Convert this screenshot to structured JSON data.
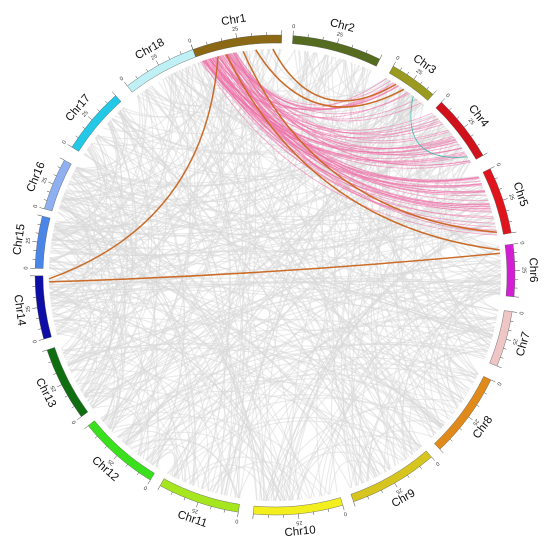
{
  "chromosomes": [
    {
      "name": "Chr1",
      "color": "#8B6914",
      "len": 50
    },
    {
      "name": "Chr2",
      "color": "#556B1F",
      "len": 48
    },
    {
      "name": "Chr3",
      "color": "#9A9A1E",
      "len": 40
    },
    {
      "name": "Chr4",
      "color": "#D0101A",
      "len": 38
    },
    {
      "name": "Chr5",
      "color": "#E0141C",
      "len": 38
    },
    {
      "name": "Chr6",
      "color": "#D21FD4",
      "len": 30
    },
    {
      "name": "Chr7",
      "color": "#EFC6C6",
      "len": 30
    },
    {
      "name": "Chr8",
      "color": "#E08A1C",
      "len": 46
    },
    {
      "name": "Chr9",
      "color": "#D7C51F",
      "len": 45
    },
    {
      "name": "Chr10",
      "color": "#F3EE1D",
      "len": 38
    },
    {
      "name": "Chr11",
      "color": "#A6E61E",
      "len": 46
    },
    {
      "name": "Chr12",
      "color": "#3AE01B",
      "len": 45
    },
    {
      "name": "Chr13",
      "color": "#0E6E10",
      "len": 40
    },
    {
      "name": "Chr14",
      "color": "#0E0EA6",
      "len": 38
    },
    {
      "name": "Chr15",
      "color": "#4A86E8",
      "len": 34
    },
    {
      "name": "Chr16",
      "color": "#8EB0F0",
      "len": 33
    },
    {
      "name": "Chr17",
      "color": "#22C8E6",
      "len": 41
    },
    {
      "name": "Chr18",
      "color": "#BFF0F5",
      "len": 43
    }
  ],
  "tick_labels": [
    "0",
    "25"
  ],
  "colors": {
    "background_links": "#d8d8d8",
    "segmental_links": "#ef6fa8",
    "highlight_links": "#c8651e",
    "accent_link": "#2db8a8"
  }
}
